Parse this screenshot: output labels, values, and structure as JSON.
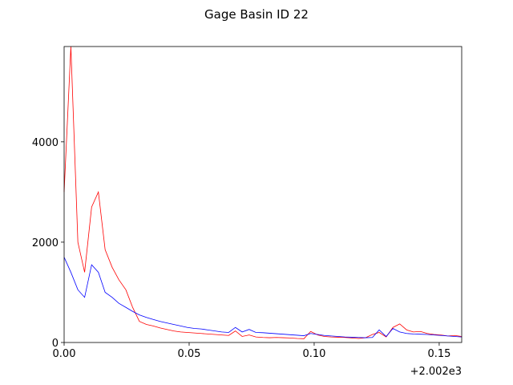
{
  "chart_data": {
    "type": "line",
    "title": "Gage Basin ID 22",
    "xlabel": "",
    "ylabel": "",
    "x_offset_label": "+2.002e3",
    "xlim": [
      0.0,
      0.159
    ],
    "ylim": [
      0,
      5900
    ],
    "x_ticks": [
      0.0,
      0.05,
      0.1,
      0.15
    ],
    "x_tick_labels": [
      "0.00",
      "0.05",
      "0.10",
      "0.15"
    ],
    "y_ticks": [
      0,
      2000,
      4000
    ],
    "y_tick_labels": [
      "0",
      "2000",
      "4000"
    ],
    "grid": false,
    "legend": false,
    "series": [
      {
        "color": "#ff0000",
        "x": [
          0.0,
          0.0027,
          0.0055,
          0.0082,
          0.011,
          0.0137,
          0.0164,
          0.0192,
          0.0219,
          0.0247,
          0.0274,
          0.0301,
          0.0329,
          0.0356,
          0.0384,
          0.0411,
          0.0438,
          0.0466,
          0.0493,
          0.0521,
          0.0548,
          0.0575,
          0.0603,
          0.063,
          0.0658,
          0.0685,
          0.0712,
          0.074,
          0.0767,
          0.0795,
          0.0822,
          0.0849,
          0.0877,
          0.0904,
          0.0932,
          0.0959,
          0.0986,
          0.1014,
          0.1041,
          0.1068,
          0.1096,
          0.1123,
          0.1151,
          0.1178,
          0.1205,
          0.1233,
          0.126,
          0.1288,
          0.1315,
          0.1342,
          0.137,
          0.1397,
          0.1425,
          0.1452,
          0.1479,
          0.1507,
          0.1534,
          0.1562,
          0.159
        ],
        "y": [
          3000,
          5900,
          2000,
          1400,
          2700,
          3000,
          1850,
          1500,
          1250,
          1050,
          700,
          420,
          360,
          330,
          290,
          260,
          230,
          210,
          200,
          190,
          180,
          170,
          160,
          150,
          140,
          230,
          120,
          150,
          110,
          100,
          95,
          100,
          95,
          90,
          80,
          75,
          220,
          150,
          120,
          110,
          105,
          100,
          90,
          80,
          95,
          160,
          200,
          110,
          300,
          370,
          250,
          210,
          220,
          180,
          160,
          150,
          130,
          140,
          120
        ]
      },
      {
        "color": "#0000ff",
        "x": [
          0.0,
          0.0027,
          0.0055,
          0.0082,
          0.011,
          0.0137,
          0.0164,
          0.0192,
          0.0219,
          0.0247,
          0.0274,
          0.0301,
          0.0329,
          0.0356,
          0.0384,
          0.0411,
          0.0438,
          0.0466,
          0.0493,
          0.0521,
          0.0548,
          0.0575,
          0.0603,
          0.063,
          0.0658,
          0.0685,
          0.0712,
          0.074,
          0.0767,
          0.0795,
          0.0822,
          0.0849,
          0.0877,
          0.0904,
          0.0932,
          0.0959,
          0.0986,
          0.1014,
          0.1041,
          0.1068,
          0.1096,
          0.1123,
          0.1151,
          0.1178,
          0.1205,
          0.1233,
          0.126,
          0.1288,
          0.1315,
          0.1342,
          0.137,
          0.1397,
          0.1425,
          0.1452,
          0.1479,
          0.1507,
          0.1534,
          0.1562,
          0.159
        ],
        "y": [
          1700,
          1400,
          1050,
          900,
          1550,
          1400,
          1000,
          900,
          780,
          700,
          620,
          550,
          500,
          460,
          420,
          390,
          360,
          330,
          300,
          280,
          270,
          250,
          230,
          210,
          200,
          300,
          210,
          260,
          200,
          195,
          185,
          175,
          165,
          155,
          145,
          135,
          180,
          160,
          140,
          130,
          120,
          110,
          105,
          100,
          95,
          100,
          250,
          120,
          280,
          210,
          180,
          170,
          165,
          160,
          150,
          140,
          130,
          120,
          110
        ]
      }
    ]
  }
}
